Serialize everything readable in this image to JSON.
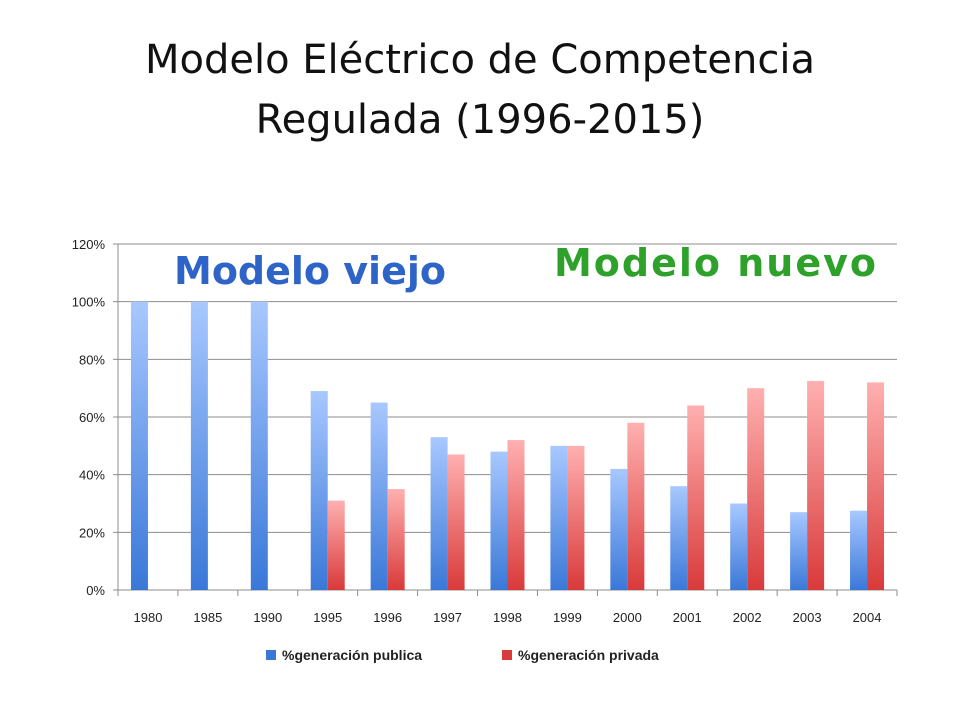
{
  "title_line1": "Modelo Eléctrico de Competencia",
  "title_line2": "Regulada (1996-2015)",
  "callouts": {
    "old": "Modelo viejo",
    "new": "Modelo nuevo"
  },
  "colors": {
    "publica_top": "#a8c8ff",
    "publica_bottom": "#3a78d8",
    "privada_top": "#ffb0b0",
    "privada_bottom": "#d93a3a",
    "grid": "#8c8c8c"
  },
  "chart_data": {
    "type": "bar",
    "categories": [
      "1980",
      "1985",
      "1990",
      "1995",
      "1996",
      "1997",
      "1998",
      "1999",
      "2000",
      "2001",
      "2002",
      "2003",
      "2004"
    ],
    "series": [
      {
        "name": "%generación publica",
        "values": [
          100,
          100,
          100,
          69,
          65,
          53,
          48,
          50,
          42,
          36,
          30,
          27,
          27.5
        ]
      },
      {
        "name": "%generación privada",
        "values": [
          0,
          0,
          0,
          31,
          35,
          47,
          52,
          50,
          58,
          64,
          70,
          72.5,
          72
        ]
      }
    ],
    "yticks": [
      "0%",
      "20%",
      "40%",
      "60%",
      "80%",
      "100%",
      "120%"
    ],
    "ylim": [
      0,
      120
    ],
    "grid": true,
    "legend_position": "bottom"
  }
}
